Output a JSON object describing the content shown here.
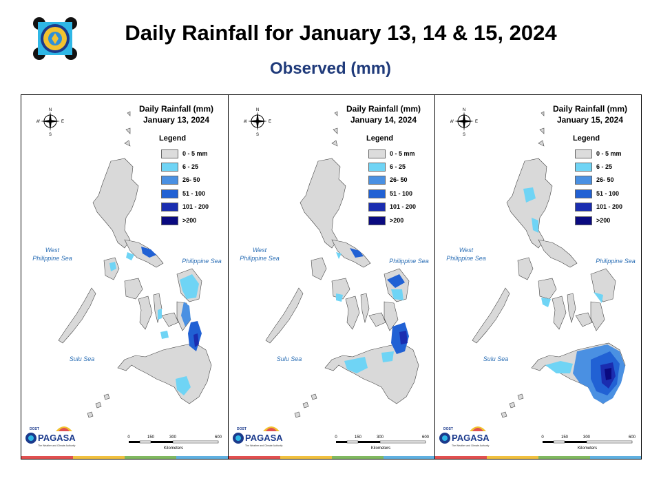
{
  "header": {
    "title": "Daily Rainfall for January 13, 14 & 15, 2024",
    "subtitle": "Observed (mm)"
  },
  "panels": [
    {
      "title_line1": "Daily Rainfall (mm)",
      "title_line2": "January 13, 2024"
    },
    {
      "title_line1": "Daily Rainfall (mm)",
      "title_line2": "January 14, 2024"
    },
    {
      "title_line1": "Daily Rainfall (mm)",
      "title_line2": "January 15, 2024"
    }
  ],
  "legend": {
    "title": "Legend",
    "items": [
      {
        "label": "0 - 5 mm",
        "color": "#dcdcdc"
      },
      {
        "label": "6 - 25",
        "color": "#6fd4f5"
      },
      {
        "label": "26- 50",
        "color": "#4a90e2"
      },
      {
        "label": "51 - 100",
        "color": "#2161d4"
      },
      {
        "label": "101 - 200",
        "color": "#1a2db0"
      },
      {
        "label": ">200",
        "color": "#0a0a80"
      }
    ]
  },
  "seas": {
    "west_line1": "West",
    "west_line2": "Philippine Sea",
    "east": "Philippine Sea",
    "south": "Sulu Sea"
  },
  "compass": {
    "n": "N",
    "s": "S",
    "e": "E",
    "w": "W"
  },
  "scale": {
    "t0": "0",
    "t1": "150",
    "t2": "300",
    "t3": "600",
    "unit": "Kilometers"
  },
  "branding": {
    "org": "PAGASA",
    "dost": "DOST",
    "tagline": "The Weather and Climate Authority"
  },
  "strip_colors": [
    "#e05050",
    "#f0c040",
    "#80b860",
    "#60b0e0"
  ]
}
